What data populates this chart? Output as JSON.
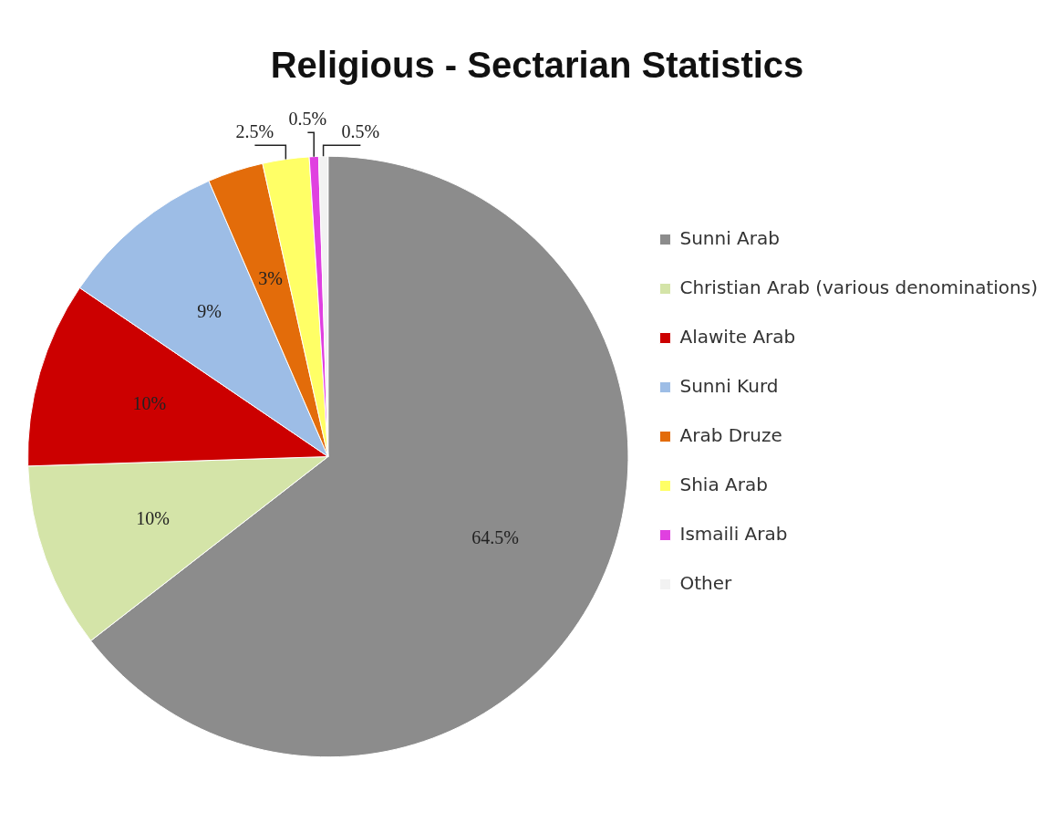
{
  "chart_data": {
    "type": "pie",
    "title": "Religious - Sectarian Statistics",
    "categories": [
      "Sunni Arab",
      "Christian Arab (various denominations)",
      "Alawite Arab",
      "Sunni Kurd",
      "Arab Druze",
      "Shia Arab",
      "Ismaili Arab",
      "Other"
    ],
    "values": [
      64.5,
      10,
      10,
      9,
      3,
      2.5,
      0.5,
      0.5
    ],
    "value_labels": [
      "64.5%",
      "10%",
      "10%",
      "9%",
      "3%",
      "2.5%",
      "0.5%",
      "0.5%"
    ],
    "colors": [
      "#8c8c8c",
      "#d4e4a8",
      "#cc0000",
      "#9dbde6",
      "#e36c0a",
      "#ffff66",
      "#e040e0",
      "#f2f2f2"
    ],
    "legend": "right"
  }
}
